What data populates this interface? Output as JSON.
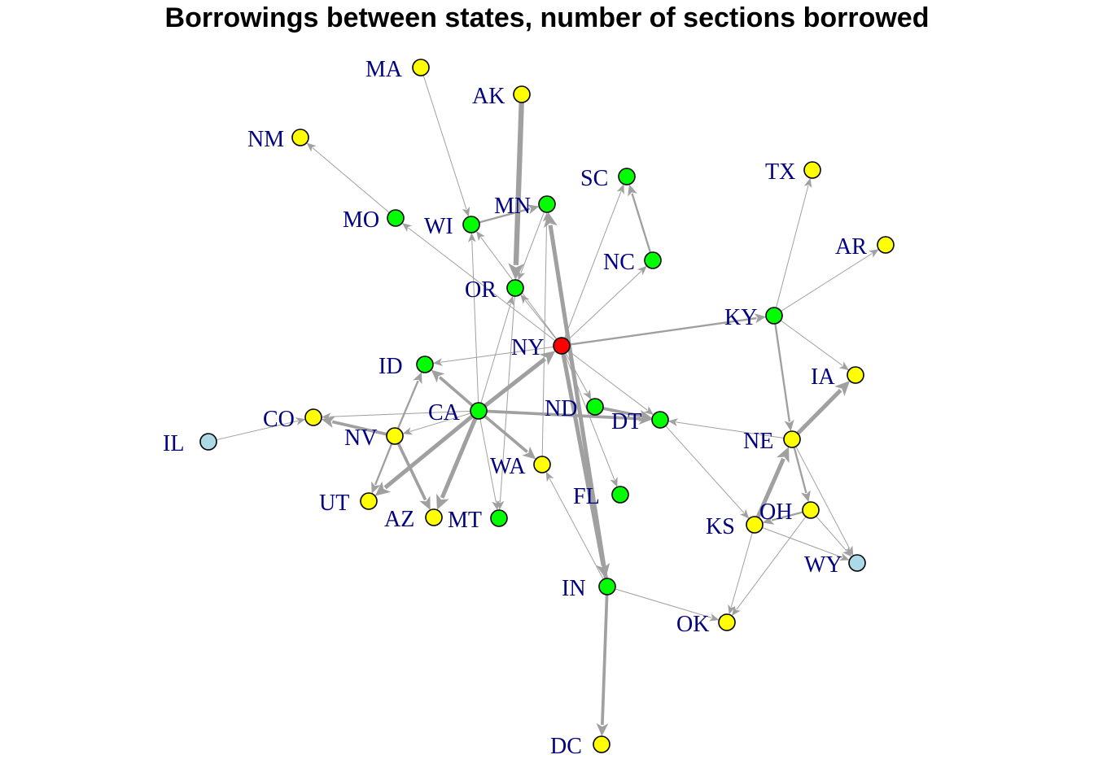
{
  "title": "Borrowings between states, number of sections borrowed",
  "colors": {
    "edge": "#a0a0a0",
    "label": "#000080",
    "node_stroke": "#000000",
    "red": "#ff0000",
    "green": "#00ff00",
    "yellow": "#ffff00",
    "lightblue": "#add8e6"
  },
  "nodes": [
    {
      "id": "MA",
      "color": "yellow"
    },
    {
      "id": "AK",
      "color": "yellow"
    },
    {
      "id": "NM",
      "color": "yellow"
    },
    {
      "id": "SC",
      "color": "green"
    },
    {
      "id": "TX",
      "color": "yellow"
    },
    {
      "id": "MN",
      "color": "green"
    },
    {
      "id": "WI",
      "color": "green"
    },
    {
      "id": "MO",
      "color": "green"
    },
    {
      "id": "AR",
      "color": "yellow"
    },
    {
      "id": "NC",
      "color": "green"
    },
    {
      "id": "OR",
      "color": "green"
    },
    {
      "id": "KY",
      "color": "green"
    },
    {
      "id": "NY",
      "color": "red"
    },
    {
      "id": "ID",
      "color": "green"
    },
    {
      "id": "IA",
      "color": "yellow"
    },
    {
      "id": "CA",
      "color": "green"
    },
    {
      "id": "ND",
      "color": "green"
    },
    {
      "id": "DT",
      "color": "green"
    },
    {
      "id": "CO",
      "color": "yellow"
    },
    {
      "id": "NE",
      "color": "yellow"
    },
    {
      "id": "IL",
      "color": "lightblue"
    },
    {
      "id": "NV",
      "color": "yellow"
    },
    {
      "id": "WA",
      "color": "yellow"
    },
    {
      "id": "FL",
      "color": "green"
    },
    {
      "id": "UT",
      "color": "yellow"
    },
    {
      "id": "AZ",
      "color": "yellow"
    },
    {
      "id": "MT",
      "color": "green"
    },
    {
      "id": "OH",
      "color": "yellow"
    },
    {
      "id": "KS",
      "color": "yellow"
    },
    {
      "id": "WY",
      "color": "lightblue"
    },
    {
      "id": "IN",
      "color": "green"
    },
    {
      "id": "OK",
      "color": "yellow"
    },
    {
      "id": "DC",
      "color": "yellow"
    }
  ],
  "edges": [
    {
      "from": "AK",
      "to": "OR",
      "weight": 5
    },
    {
      "from": "MA",
      "to": "WI",
      "weight": 1
    },
    {
      "from": "MO",
      "to": "NM",
      "weight": 1
    },
    {
      "from": "NC",
      "to": "SC",
      "weight": 2
    },
    {
      "from": "KY",
      "to": "TX",
      "weight": 1
    },
    {
      "from": "KY",
      "to": "AR",
      "weight": 1
    },
    {
      "from": "KY",
      "to": "IA",
      "weight": 1
    },
    {
      "from": "KY",
      "to": "NE",
      "weight": 2
    },
    {
      "from": "NY",
      "to": "KY",
      "weight": 2
    },
    {
      "from": "NY",
      "to": "MO",
      "weight": 1
    },
    {
      "from": "NY",
      "to": "SC",
      "weight": 1
    },
    {
      "from": "NY",
      "to": "NC",
      "weight": 1
    },
    {
      "from": "NY",
      "to": "OR",
      "weight": 1
    },
    {
      "from": "NY",
      "to": "ID",
      "weight": 1
    },
    {
      "from": "NY",
      "to": "WI",
      "weight": 1
    },
    {
      "from": "NY",
      "to": "ND",
      "weight": 1
    },
    {
      "from": "NY",
      "to": "DT",
      "weight": 1
    },
    {
      "from": "NY",
      "to": "FL",
      "weight": 1
    },
    {
      "from": "IN",
      "to": "MN",
      "weight": 4
    },
    {
      "from": "NY",
      "to": "IN",
      "weight": 4
    },
    {
      "from": "CA",
      "to": "NY",
      "weight": 4
    },
    {
      "from": "WI",
      "to": "MN",
      "weight": 2
    },
    {
      "from": "MN",
      "to": "OR",
      "weight": 1
    },
    {
      "from": "WA",
      "to": "MN",
      "weight": 1
    },
    {
      "from": "CA",
      "to": "OR",
      "weight": 1
    },
    {
      "from": "OR",
      "to": "MT",
      "weight": 1
    },
    {
      "from": "CA",
      "to": "WI",
      "weight": 1
    },
    {
      "from": "CA",
      "to": "ID",
      "weight": 3
    },
    {
      "from": "CA",
      "to": "CO",
      "weight": 1
    },
    {
      "from": "CA",
      "to": "NV",
      "weight": 1
    },
    {
      "from": "CA",
      "to": "UT",
      "weight": 4
    },
    {
      "from": "CA",
      "to": "AZ",
      "weight": 4
    },
    {
      "from": "CA",
      "to": "MT",
      "weight": 1
    },
    {
      "from": "CA",
      "to": "WA",
      "weight": 3
    },
    {
      "from": "CA",
      "to": "DT",
      "weight": 3
    },
    {
      "from": "ND",
      "to": "DT",
      "weight": 3
    },
    {
      "from": "NE",
      "to": "DT",
      "weight": 1
    },
    {
      "from": "NV",
      "to": "CO",
      "weight": 3
    },
    {
      "from": "NV",
      "to": "ID",
      "weight": 2
    },
    {
      "from": "NV",
      "to": "UT",
      "weight": 2
    },
    {
      "from": "NV",
      "to": "AZ",
      "weight": 3
    },
    {
      "from": "IL",
      "to": "CO",
      "weight": 1
    },
    {
      "from": "IN",
      "to": "WA",
      "weight": 1
    },
    {
      "from": "IN",
      "to": "DC",
      "weight": 3
    },
    {
      "from": "IN",
      "to": "OK",
      "weight": 1
    },
    {
      "from": "NE",
      "to": "IA",
      "weight": 4
    },
    {
      "from": "KS",
      "to": "NE",
      "weight": 4
    },
    {
      "from": "NE",
      "to": "OH",
      "weight": 2
    },
    {
      "from": "NE",
      "to": "WY",
      "weight": 1
    },
    {
      "from": "DT",
      "to": "KS",
      "weight": 1
    },
    {
      "from": "KS",
      "to": "WY",
      "weight": 1
    },
    {
      "from": "KS",
      "to": "OK",
      "weight": 1
    },
    {
      "from": "OH",
      "to": "KS",
      "weight": 2
    },
    {
      "from": "OH",
      "to": "OK",
      "weight": 1
    },
    {
      "from": "OH",
      "to": "WY",
      "weight": 1
    }
  ]
}
